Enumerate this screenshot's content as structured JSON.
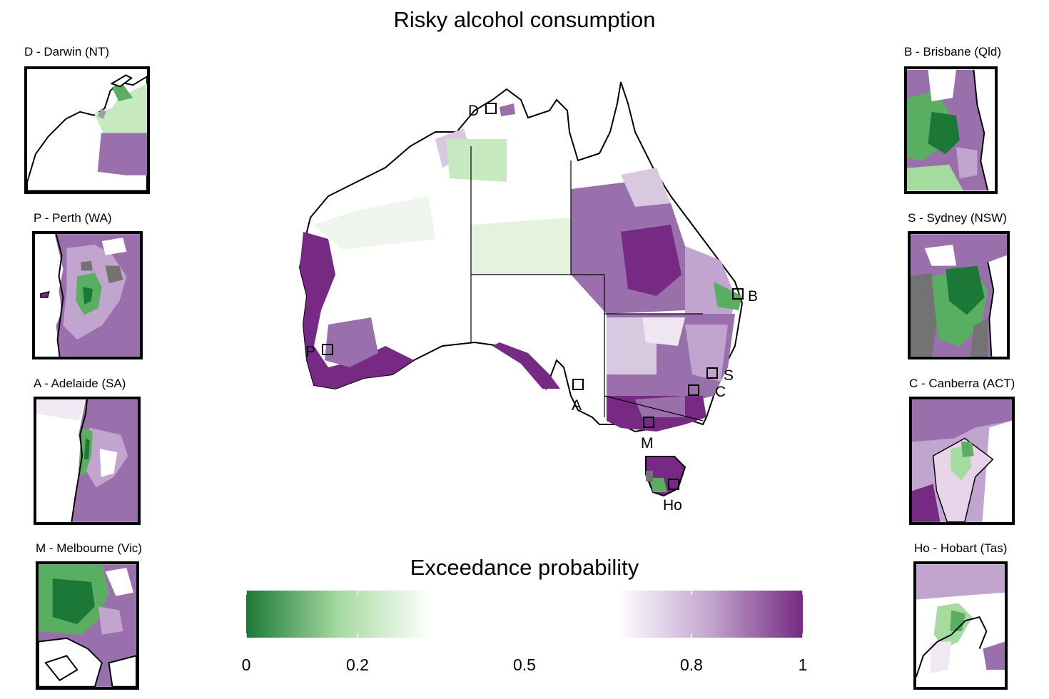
{
  "title": "Risky alcohol consumption",
  "insets": [
    {
      "key": "D",
      "label": "D - Darwin (NT)"
    },
    {
      "key": "P",
      "label": "P - Perth (WA)"
    },
    {
      "key": "A",
      "label": "A - Adelaide (SA)"
    },
    {
      "key": "M",
      "label": "M - Melbourne (Vic)"
    },
    {
      "key": "B",
      "label": "B - Brisbane (Qld)"
    },
    {
      "key": "S",
      "label": "S - Sydney (NSW)"
    },
    {
      "key": "C",
      "label": "C - Canberra (ACT)"
    },
    {
      "key": "Ho",
      "label": "Ho - Hobart (Tas)"
    }
  ],
  "map_markers": [
    "D",
    "P",
    "A",
    "M",
    "B",
    "S",
    "C",
    "Ho"
  ],
  "legend": {
    "title": "Exceedance probability",
    "ticks": [
      "0",
      "0.2",
      "0.5",
      "0.8",
      "1"
    ],
    "colors": {
      "low": "#1b7837",
      "mid_low": "#a6dba0",
      "neutral": "#ffffff",
      "mid_high": "#c2a5cf",
      "high": "#762a83",
      "missing": "#737373"
    }
  }
}
